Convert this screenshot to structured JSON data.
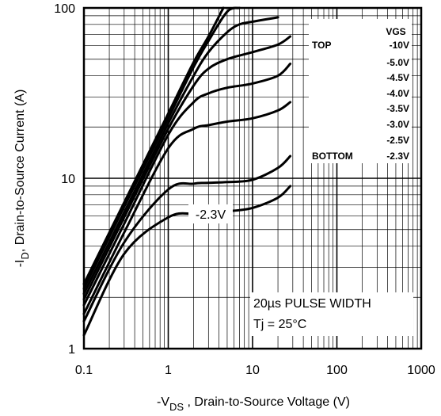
{
  "chart_data": {
    "type": "line",
    "title": "",
    "xlabel": {
      "prefix": "-V",
      "sub": "DS",
      "rest": " , Drain-to-Source Voltage (V)"
    },
    "ylabel": {
      "prefix": "-I",
      "sub": "D",
      "rest": ",  Drain-to-Source Current (A)"
    },
    "xscale": "log",
    "yscale": "log",
    "xlim": [
      0.1,
      1000
    ],
    "ylim": [
      1,
      100
    ],
    "grid": true,
    "x_ticks": [
      {
        "value": 0.1,
        "label": "0.1"
      },
      {
        "value": 1,
        "label": "1"
      },
      {
        "value": 10,
        "label": "10"
      },
      {
        "value": 100,
        "label": "100"
      },
      {
        "value": 1000,
        "label": "1000"
      }
    ],
    "y_ticks": [
      {
        "value": 1,
        "label": "1"
      },
      {
        "value": 10,
        "label": "10"
      },
      {
        "value": 100,
        "label": "100"
      }
    ],
    "legend": {
      "placement": "top-right",
      "header": "VGS",
      "top_label": "TOP",
      "bottom_label": "BOTTOM",
      "entries": [
        "-10V",
        "-5.0V",
        "-4.5V",
        "-4.0V",
        "-3.5V",
        "-3.0V",
        "-2.5V",
        "-2.3V"
      ]
    },
    "annotations": {
      "curve_label": "-2.3V",
      "pulse_text": "20µs PULSE  WIDTH",
      "temp_text": "Tj = 25°C"
    },
    "series": [
      {
        "name": "-10V",
        "points": [
          [
            0.1,
            2.4
          ],
          [
            0.3,
            7.2
          ],
          [
            1,
            24
          ],
          [
            2,
            48
          ],
          [
            3,
            68
          ],
          [
            4.5,
            100
          ]
        ]
      },
      {
        "name": "-5.0V",
        "points": [
          [
            0.1,
            2.25
          ],
          [
            0.3,
            6.8
          ],
          [
            1,
            22.5
          ],
          [
            2,
            45
          ],
          [
            3,
            64
          ],
          [
            5,
            95
          ],
          [
            7,
            100
          ]
        ]
      },
      {
        "name": "-4.5V",
        "points": [
          [
            0.1,
            2.1
          ],
          [
            0.3,
            6.3
          ],
          [
            1,
            21
          ],
          [
            2,
            40
          ],
          [
            3,
            55
          ],
          [
            5,
            72
          ],
          [
            7,
            80
          ],
          [
            10,
            83
          ],
          [
            20,
            88
          ]
        ]
      },
      {
        "name": "-4.0V",
        "points": [
          [
            0.1,
            1.95
          ],
          [
            0.3,
            5.9
          ],
          [
            1,
            19.5
          ],
          [
            2,
            35
          ],
          [
            3,
            44
          ],
          [
            5,
            50
          ],
          [
            10,
            55
          ],
          [
            20,
            61
          ],
          [
            28,
            68
          ]
        ]
      },
      {
        "name": "-3.5V",
        "points": [
          [
            0.1,
            1.8
          ],
          [
            0.3,
            5.4
          ],
          [
            1,
            18
          ],
          [
            2,
            28
          ],
          [
            3,
            31.5
          ],
          [
            5,
            34
          ],
          [
            10,
            36
          ],
          [
            20,
            40
          ],
          [
            28,
            47
          ]
        ]
      },
      {
        "name": "-3.0V",
        "points": [
          [
            0.1,
            1.6
          ],
          [
            0.3,
            4.8
          ],
          [
            1,
            15
          ],
          [
            2,
            19.5
          ],
          [
            3,
            20.5
          ],
          [
            5,
            21.5
          ],
          [
            10,
            22.5
          ],
          [
            20,
            25
          ],
          [
            28,
            28
          ]
        ]
      },
      {
        "name": "-2.5V",
        "points": [
          [
            0.1,
            1.45
          ],
          [
            0.3,
            4.2
          ],
          [
            1,
            8.6
          ],
          [
            2,
            9.3
          ],
          [
            3,
            9.4
          ],
          [
            5,
            9.5
          ],
          [
            10,
            9.8
          ],
          [
            20,
            11.5
          ],
          [
            28,
            13.5
          ]
        ]
      },
      {
        "name": "-2.3V",
        "points": [
          [
            0.1,
            1.2
          ],
          [
            0.3,
            3.6
          ],
          [
            1,
            5.9
          ],
          [
            2,
            6.2
          ],
          [
            3,
            6.3
          ],
          [
            5,
            6.4
          ],
          [
            10,
            6.7
          ],
          [
            20,
            7.7
          ],
          [
            28,
            9.0
          ]
        ]
      }
    ]
  }
}
